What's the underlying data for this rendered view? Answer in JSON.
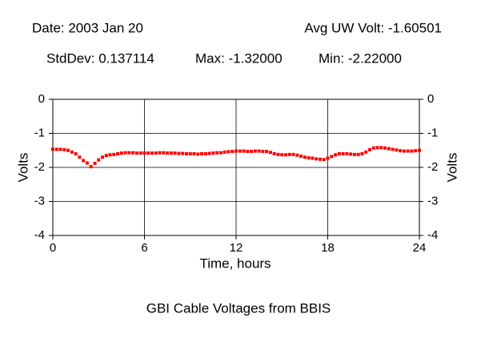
{
  "header": {
    "date": "Date: 2003 Jan 20",
    "avg": "Avg UW Volt: -1.60501",
    "stddev": "StdDev: 0.137114",
    "max": "Max: -1.32000",
    "min": "Min: -2.22000"
  },
  "chart_data": {
    "type": "scatter",
    "title": "GBI Cable Voltages from BBIS",
    "x_label": "Time, hours",
    "y_label": "Volts",
    "xlim": [
      0,
      24
    ],
    "xticks": [
      0,
      6,
      12,
      18,
      24
    ],
    "ylim": [
      -4,
      0
    ],
    "yticks": [
      0,
      -1,
      -2,
      -3,
      -4
    ],
    "grid": true,
    "series": [
      {
        "color": "#ff0000",
        "x": [
          0,
          0.25,
          0.5,
          0.75,
          1,
          1.25,
          1.5,
          1.75,
          2,
          2.25,
          2.5,
          2.75,
          3,
          3.25,
          3.5,
          3.75,
          4,
          4.25,
          4.5,
          4.75,
          5,
          5.25,
          5.5,
          5.75,
          6,
          6.25,
          6.5,
          6.75,
          7,
          7.25,
          7.5,
          7.75,
          8,
          8.25,
          8.5,
          8.75,
          9,
          9.25,
          9.5,
          9.75,
          10,
          10.25,
          10.5,
          10.75,
          11,
          11.25,
          11.5,
          11.75,
          12,
          12.25,
          12.5,
          12.75,
          13,
          13.25,
          13.5,
          13.75,
          14,
          14.25,
          14.5,
          14.75,
          15,
          15.25,
          15.5,
          15.75,
          16,
          16.25,
          16.5,
          16.75,
          17,
          17.25,
          17.5,
          17.75,
          18,
          18.25,
          18.5,
          18.75,
          19,
          19.25,
          19.5,
          19.75,
          20,
          20.25,
          20.5,
          20.75,
          21,
          21.25,
          21.5,
          21.75,
          22,
          22.25,
          22.5,
          22.75,
          23,
          23.25,
          23.5,
          23.75,
          24
        ],
        "values": [
          -1.47,
          -1.47,
          -1.47,
          -1.48,
          -1.5,
          -1.55,
          -1.6,
          -1.7,
          -1.8,
          -1.87,
          -1.98,
          -1.88,
          -1.78,
          -1.7,
          -1.65,
          -1.63,
          -1.62,
          -1.6,
          -1.58,
          -1.57,
          -1.57,
          -1.57,
          -1.58,
          -1.58,
          -1.58,
          -1.58,
          -1.58,
          -1.58,
          -1.57,
          -1.57,
          -1.58,
          -1.58,
          -1.58,
          -1.59,
          -1.59,
          -1.6,
          -1.6,
          -1.6,
          -1.61,
          -1.6,
          -1.6,
          -1.59,
          -1.58,
          -1.57,
          -1.57,
          -1.55,
          -1.54,
          -1.53,
          -1.52,
          -1.52,
          -1.52,
          -1.53,
          -1.53,
          -1.52,
          -1.52,
          -1.53,
          -1.53,
          -1.56,
          -1.6,
          -1.62,
          -1.63,
          -1.63,
          -1.62,
          -1.62,
          -1.64,
          -1.67,
          -1.7,
          -1.72,
          -1.73,
          -1.75,
          -1.76,
          -1.77,
          -1.73,
          -1.68,
          -1.63,
          -1.6,
          -1.6,
          -1.6,
          -1.61,
          -1.62,
          -1.62,
          -1.6,
          -1.55,
          -1.48,
          -1.43,
          -1.42,
          -1.42,
          -1.43,
          -1.45,
          -1.47,
          -1.49,
          -1.51,
          -1.52,
          -1.52,
          -1.52,
          -1.51,
          -1.5
        ]
      }
    ]
  }
}
